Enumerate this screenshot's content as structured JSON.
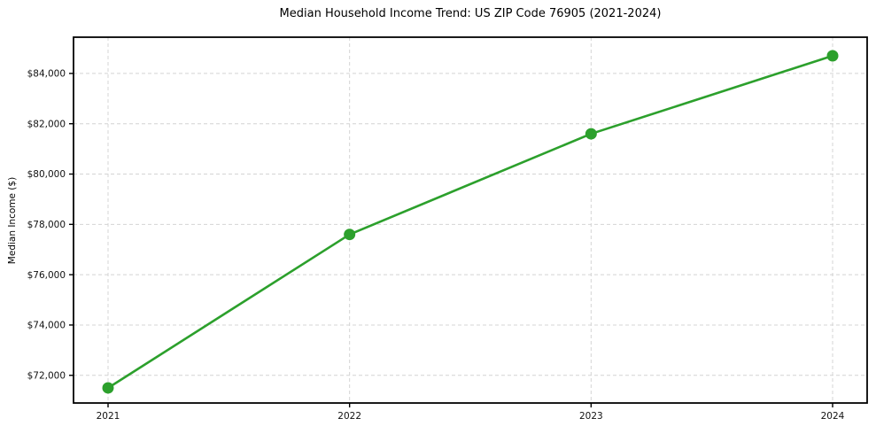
{
  "chart_data": {
    "type": "line",
    "title": "Median Household Income Trend: US ZIP Code 76905 (2021-2024)",
    "xlabel": "",
    "ylabel": "Median Income ($)",
    "x": [
      "2021",
      "2022",
      "2023",
      "2024"
    ],
    "y": [
      71500,
      77600,
      81600,
      84700
    ],
    "ylim": [
      70900,
      85440
    ],
    "yticks": [
      72000,
      74000,
      76000,
      78000,
      80000,
      82000,
      84000
    ],
    "ytick_labels": [
      "$72,000",
      "$74,000",
      "$76,000",
      "$78,000",
      "$80,000",
      "$82,000",
      "$84,000"
    ],
    "grid": true,
    "grid_style": "dashed",
    "legend_position": "none",
    "colors": {
      "line": "#2ca02c",
      "marker": "#2ca02c",
      "grid": "#d4d4d4",
      "axis": "#000000",
      "background": "#ffffff",
      "text": "#111111"
    }
  }
}
